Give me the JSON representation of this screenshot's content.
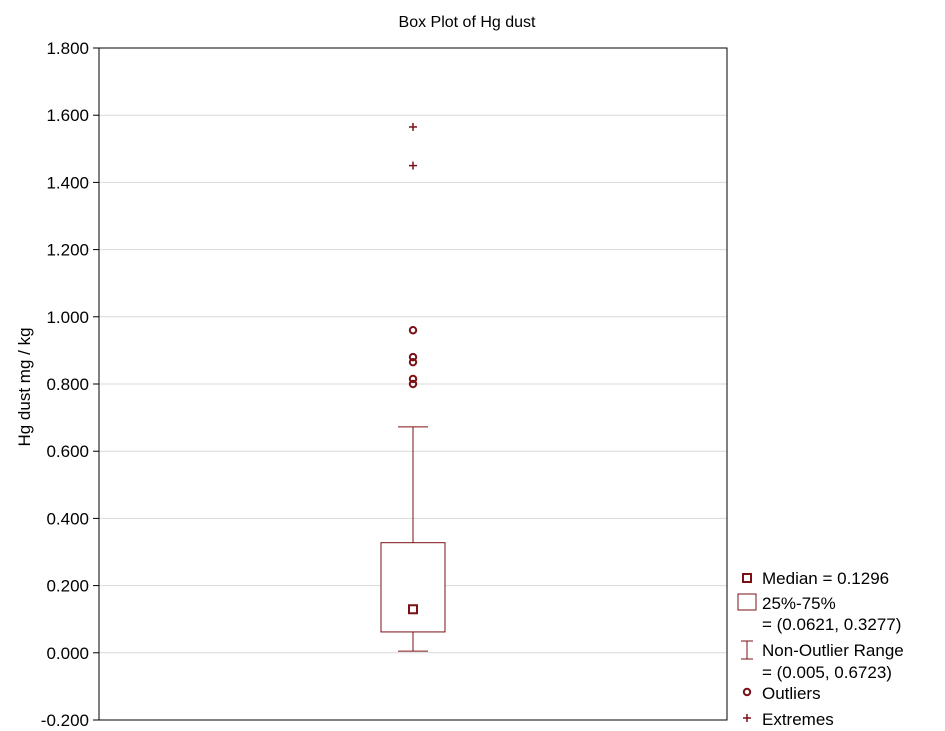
{
  "chart_data": {
    "type": "box",
    "title": "Box Plot of Hg dust",
    "xlabel": "",
    "ylabel": "Hg dust  mg / kg",
    "ylim": [
      -0.2,
      1.8
    ],
    "yticks": [
      "-0.200",
      "0.000",
      "0.200",
      "0.400",
      "0.600",
      "0.800",
      "1.000",
      "1.200",
      "1.400",
      "1.600",
      "1.800"
    ],
    "ytick_values": [
      -0.2,
      0.0,
      0.2,
      0.4,
      0.6,
      0.8,
      1.0,
      1.2,
      1.4,
      1.6,
      1.8
    ],
    "grid": true,
    "legend_position": "right",
    "median": 0.1296,
    "q1": 0.0621,
    "q3": 0.3277,
    "whisker_low": 0.005,
    "whisker_high": 0.6723,
    "outliers": [
      0.8,
      0.815,
      0.865,
      0.88,
      0.96
    ],
    "extremes": [
      1.45,
      1.565
    ],
    "color": "#7b1116"
  },
  "legend": {
    "median": "Median = 0.1296",
    "box_line1": "25%-75%",
    "box_line2": "= (0.0621, 0.3277)",
    "range_line1": "Non-Outlier Range",
    "range_line2": "= (0.005, 0.6723)",
    "outliers": "Outliers",
    "extremes": "Extremes"
  }
}
